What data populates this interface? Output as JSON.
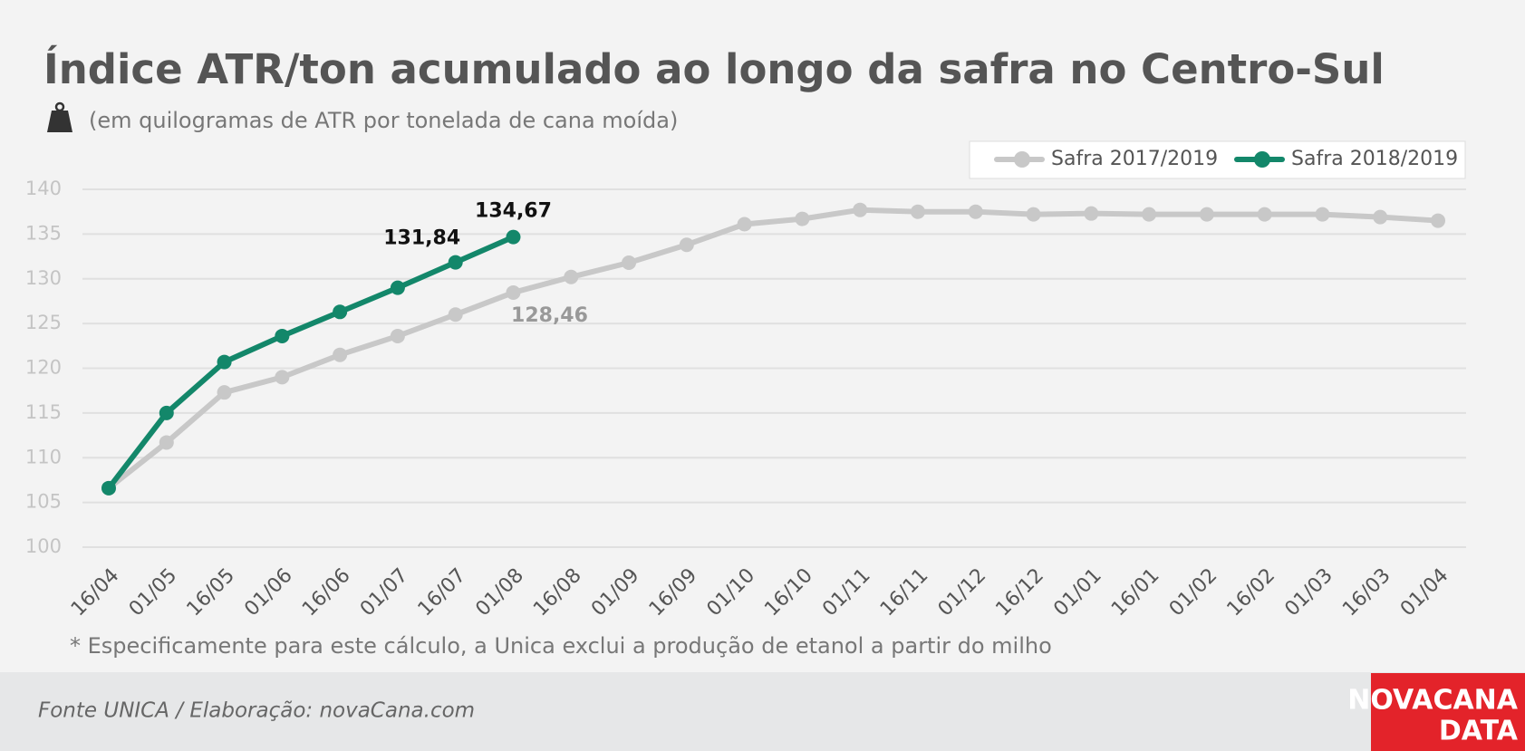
{
  "chart_data": {
    "type": "line",
    "title": "Índice ATR/ton acumulado ao longo da safra no Centro-Sul",
    "subtitle": "(em quilogramas de ATR por tonelada de cana moída)",
    "footnote": "* Especificamente para este cálculo, a Unica exclui a produção de etanol a partir do milho",
    "source": "Fonte UNICA / Elaboração: novaCana.com",
    "logo": [
      "NOVACANA",
      "DATA"
    ],
    "categories": [
      "16/04",
      "01/05",
      "16/05",
      "01/06",
      "16/06",
      "01/07",
      "16/07",
      "01/08",
      "16/08",
      "01/09",
      "16/09",
      "01/10",
      "16/10",
      "01/11",
      "16/11",
      "01/12",
      "16/12",
      "01/01",
      "16/01",
      "01/02",
      "16/02",
      "01/03",
      "16/03",
      "01/04"
    ],
    "series": [
      {
        "name": "Safra 2017/2019",
        "color": "#c8c8c8",
        "values": [
          106.6,
          111.7,
          117.3,
          119.0,
          121.5,
          123.6,
          126.0,
          128.46,
          130.2,
          131.8,
          133.8,
          136.1,
          136.7,
          137.7,
          137.5,
          137.5,
          137.2,
          137.3,
          137.2,
          137.2,
          137.2,
          137.2,
          136.9,
          136.5
        ],
        "value_labels": [
          null,
          null,
          null,
          null,
          null,
          null,
          null,
          "128,46",
          null,
          null,
          null,
          null,
          null,
          null,
          null,
          null,
          null,
          null,
          null,
          null,
          null,
          null,
          null,
          null
        ]
      },
      {
        "name": "Safra 2018/2019",
        "color": "#13876a",
        "values": [
          106.6,
          115.0,
          120.7,
          123.6,
          126.3,
          129.0,
          131.84,
          134.67,
          null,
          null,
          null,
          null,
          null,
          null,
          null,
          null,
          null,
          null,
          null,
          null,
          null,
          null,
          null,
          null
        ],
        "value_labels": [
          null,
          null,
          null,
          null,
          null,
          null,
          "131,84",
          "134,67",
          null,
          null,
          null,
          null,
          null,
          null,
          null,
          null,
          null,
          null,
          null,
          null,
          null,
          null,
          null,
          null
        ]
      }
    ],
    "ylim": [
      100,
      140
    ],
    "yticks": [
      100,
      105,
      110,
      115,
      120,
      125,
      130,
      135,
      140
    ],
    "grid": true,
    "legend": "top-right"
  }
}
